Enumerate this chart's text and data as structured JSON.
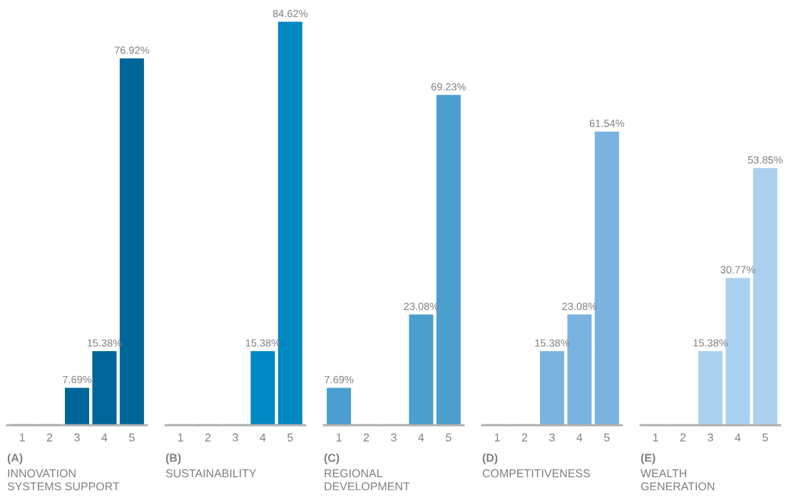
{
  "chart_data": [
    {
      "type": "bar",
      "title": "(A)",
      "subtitle": "INNOVATION\nSYSTEMS SUPPORT",
      "categories": [
        "1",
        "2",
        "3",
        "4",
        "5"
      ],
      "values": [
        0,
        0,
        7.69,
        15.38,
        76.92
      ],
      "value_labels": [
        null,
        null,
        "7.69%",
        "15.38%",
        "76.92%"
      ],
      "color": "#006699"
    },
    {
      "type": "bar",
      "title": "(B)",
      "subtitle": "SUSTAINABILITY",
      "categories": [
        "1",
        "2",
        "3",
        "4",
        "5"
      ],
      "values": [
        0,
        0,
        0,
        15.38,
        84.62
      ],
      "value_labels": [
        null,
        null,
        null,
        "15.38%",
        "84.62%"
      ],
      "color": "#0088c2"
    },
    {
      "type": "bar",
      "title": "(C)",
      "subtitle": "REGIONAL\nDEVELOPMENT",
      "categories": [
        "1",
        "2",
        "3",
        "4",
        "5"
      ],
      "values": [
        7.69,
        0,
        0,
        23.08,
        69.23
      ],
      "value_labels": [
        "7.69%",
        null,
        null,
        "23.08%",
        "69.23%"
      ],
      "color": "#4a9fce"
    },
    {
      "type": "bar",
      "title": "(D)",
      "subtitle": "COMPETITIVENESS",
      "categories": [
        "1",
        "2",
        "3",
        "4",
        "5"
      ],
      "values": [
        0,
        0,
        15.38,
        23.08,
        61.54
      ],
      "value_labels": [
        null,
        null,
        "15.38%",
        "23.08%",
        "61.54%"
      ],
      "color": "#7ab3e0"
    },
    {
      "type": "bar",
      "title": "(E)",
      "subtitle": "WEALTH\nGENERATION",
      "categories": [
        "1",
        "2",
        "3",
        "4",
        "5"
      ],
      "values": [
        0,
        0,
        15.38,
        30.77,
        53.85
      ],
      "value_labels": [
        null,
        null,
        "15.38%",
        "30.77%",
        "53.85%"
      ],
      "color": "#aad2f0"
    }
  ]
}
